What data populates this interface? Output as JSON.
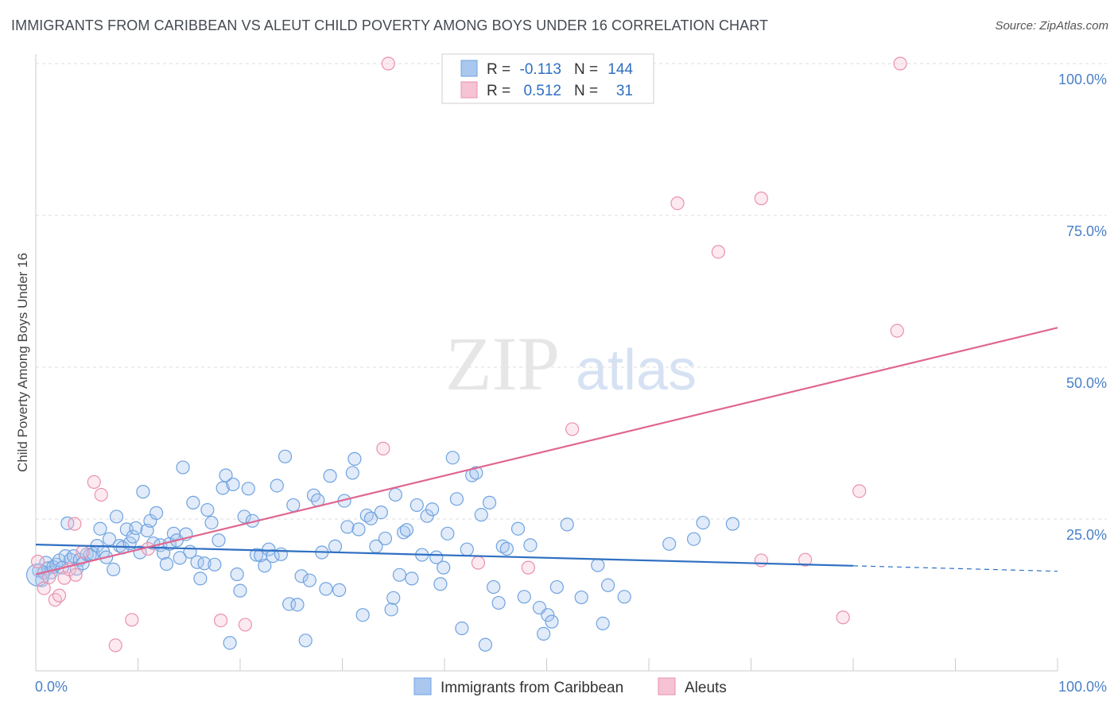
{
  "title": "IMMIGRANTS FROM CARIBBEAN VS ALEUT CHILD POVERTY AMONG BOYS UNDER 16 CORRELATION CHART",
  "source": "Source: ZipAtlas.com",
  "watermark": {
    "zip": "ZIP",
    "atlas": "atlas"
  },
  "colors": {
    "blue": "#6fa3e0",
    "blue_fill": "#a9c7ef",
    "blue_line": "#2f6fc2",
    "pink": "#e991ad",
    "pink_fill": "#f5c3d3",
    "pink_line": "#e06690",
    "tick_text": "#4a80c8",
    "grid": "#dcdcdc"
  },
  "legend": {
    "rows": [
      {
        "r_label": "R =",
        "r_value": "-0.113",
        "n_label": "N =",
        "n_value": "144",
        "color": "blue"
      },
      {
        "r_label": "R =",
        "r_value": "0.512",
        "n_label": "N =",
        "n_value": "31",
        "color": "pink"
      }
    ]
  },
  "chart_data": {
    "type": "scatter",
    "title": "IMMIGRANTS FROM CARIBBEAN VS ALEUT CHILD POVERTY AMONG BOYS UNDER 16 CORRELATION CHART",
    "xlabel": "",
    "ylabel": "Child Poverty Among Boys Under 16",
    "xlim": [
      0,
      100
    ],
    "ylim": [
      0,
      100
    ],
    "x_tick_labels": [
      "0.0%",
      "100.0%"
    ],
    "y_tick_labels": [
      "25.0%",
      "50.0%",
      "75.0%",
      "100.0%"
    ],
    "y_ticks": [
      25,
      50,
      75,
      100
    ],
    "grid": true,
    "legend_position": "bottom-center",
    "series": [
      {
        "name": "Immigrants from Caribbean",
        "color": "blue",
        "trend": {
          "x0": 0,
          "y0": 20.8,
          "x1": 80,
          "y1": 17.3,
          "dashed_to": 100,
          "dashed_y": 16.4
        },
        "points": [
          [
            0.3,
            16.5
          ],
          [
            0.6,
            14.9
          ],
          [
            0.8,
            16.2
          ],
          [
            1.0,
            17.8
          ],
          [
            1.2,
            16.9
          ],
          [
            1.5,
            16.2
          ],
          [
            1.7,
            17.1
          ],
          [
            2.0,
            17.5
          ],
          [
            2.3,
            18.2
          ],
          [
            2.6,
            17.0
          ],
          [
            2.9,
            18.9
          ],
          [
            3.1,
            24.3
          ],
          [
            3.4,
            18.3
          ],
          [
            3.7,
            18.9
          ],
          [
            4.0,
            16.8
          ],
          [
            4.3,
            18.3
          ],
          [
            4.6,
            17.7
          ],
          [
            5.0,
            19.2
          ],
          [
            5.3,
            19.1
          ],
          [
            5.6,
            19.3
          ],
          [
            6.0,
            20.6
          ],
          [
            6.3,
            23.4
          ],
          [
            6.6,
            19.6
          ],
          [
            6.9,
            18.7
          ],
          [
            7.2,
            21.7
          ],
          [
            7.6,
            16.7
          ],
          [
            7.9,
            25.4
          ],
          [
            8.2,
            20.6
          ],
          [
            8.5,
            20.3
          ],
          [
            8.9,
            23.3
          ],
          [
            9.2,
            21.0
          ],
          [
            9.5,
            22.1
          ],
          [
            9.8,
            23.5
          ],
          [
            10.2,
            19.5
          ],
          [
            10.5,
            29.5
          ],
          [
            10.9,
            23.1
          ],
          [
            11.2,
            24.7
          ],
          [
            11.5,
            21.0
          ],
          [
            11.8,
            26.0
          ],
          [
            12.2,
            20.7
          ],
          [
            12.5,
            19.4
          ],
          [
            12.8,
            17.6
          ],
          [
            13.1,
            20.9
          ],
          [
            13.5,
            22.6
          ],
          [
            13.8,
            21.5
          ],
          [
            14.1,
            18.6
          ],
          [
            14.4,
            33.5
          ],
          [
            14.7,
            22.5
          ],
          [
            15.1,
            19.6
          ],
          [
            15.4,
            27.7
          ],
          [
            15.8,
            17.9
          ],
          [
            16.1,
            15.2
          ],
          [
            16.5,
            17.7
          ],
          [
            16.8,
            26.5
          ],
          [
            17.2,
            24.4
          ],
          [
            17.5,
            17.5
          ],
          [
            17.9,
            21.5
          ],
          [
            18.3,
            30.1
          ],
          [
            18.6,
            32.2
          ],
          [
            19.0,
            4.6
          ],
          [
            19.3,
            30.7
          ],
          [
            19.7,
            15.9
          ],
          [
            20.0,
            13.2
          ],
          [
            20.4,
            25.4
          ],
          [
            20.8,
            30.0
          ],
          [
            21.2,
            24.7
          ],
          [
            21.6,
            19.1
          ],
          [
            22.0,
            19.0
          ],
          [
            22.4,
            17.3
          ],
          [
            22.8,
            20.0
          ],
          [
            23.2,
            18.9
          ],
          [
            23.6,
            30.5
          ],
          [
            24.0,
            19.2
          ],
          [
            24.4,
            35.3
          ],
          [
            24.8,
            11.0
          ],
          [
            25.2,
            27.3
          ],
          [
            25.6,
            10.9
          ],
          [
            26.0,
            15.6
          ],
          [
            26.4,
            5.0
          ],
          [
            26.8,
            14.9
          ],
          [
            27.2,
            28.9
          ],
          [
            27.6,
            28.1
          ],
          [
            28.0,
            19.5
          ],
          [
            28.4,
            13.5
          ],
          [
            28.8,
            32.1
          ],
          [
            29.3,
            20.5
          ],
          [
            29.7,
            13.3
          ],
          [
            30.2,
            28.0
          ],
          [
            30.5,
            23.7
          ],
          [
            31.0,
            32.6
          ],
          [
            31.2,
            34.9
          ],
          [
            31.6,
            23.3
          ],
          [
            32.0,
            9.2
          ],
          [
            32.4,
            25.6
          ],
          [
            32.8,
            25.1
          ],
          [
            33.3,
            20.5
          ],
          [
            33.8,
            26.1
          ],
          [
            34.2,
            21.8
          ],
          [
            34.8,
            10.1
          ],
          [
            35.2,
            29.0
          ],
          [
            35.6,
            15.8
          ],
          [
            36.0,
            22.8
          ],
          [
            36.3,
            23.2
          ],
          [
            36.8,
            15.2
          ],
          [
            37.3,
            27.3
          ],
          [
            37.8,
            19.1
          ],
          [
            38.3,
            25.5
          ],
          [
            38.8,
            26.6
          ],
          [
            39.2,
            18.7
          ],
          [
            39.6,
            14.3
          ],
          [
            39.9,
            17.0
          ],
          [
            40.3,
            22.6
          ],
          [
            40.8,
            35.1
          ],
          [
            41.2,
            28.3
          ],
          [
            41.7,
            7.0
          ],
          [
            42.2,
            20.0
          ],
          [
            42.7,
            32.2
          ],
          [
            43.1,
            32.6
          ],
          [
            43.6,
            25.7
          ],
          [
            44.0,
            4.3
          ],
          [
            44.4,
            27.7
          ],
          [
            44.8,
            13.8
          ],
          [
            45.3,
            11.2
          ],
          [
            45.7,
            20.5
          ],
          [
            46.1,
            20.1
          ],
          [
            47.2,
            23.4
          ],
          [
            47.8,
            12.2
          ],
          [
            48.4,
            20.7
          ],
          [
            49.3,
            10.4
          ],
          [
            49.7,
            6.1
          ],
          [
            50.1,
            9.2
          ],
          [
            50.5,
            8.1
          ],
          [
            51.0,
            13.8
          ],
          [
            52.0,
            24.1
          ],
          [
            53.4,
            12.1
          ],
          [
            55.0,
            17.4
          ],
          [
            55.5,
            7.8
          ],
          [
            56.0,
            14.1
          ],
          [
            57.6,
            12.2
          ],
          [
            62.0,
            20.9
          ],
          [
            64.4,
            21.7
          ],
          [
            65.3,
            24.4
          ],
          [
            68.2,
            24.2
          ],
          [
            35.0,
            12.0
          ]
        ]
      },
      {
        "name": "Aleuts",
        "color": "pink",
        "trend": {
          "x0": 0,
          "y0": 15.9,
          "x1": 100,
          "y1": 56.5
        },
        "points": [
          [
            0.2,
            18.0
          ],
          [
            0.8,
            13.6
          ],
          [
            1.3,
            15.4
          ],
          [
            1.9,
            11.7
          ],
          [
            2.3,
            12.4
          ],
          [
            2.8,
            15.3
          ],
          [
            3.3,
            16.7
          ],
          [
            3.9,
            15.8
          ],
          [
            3.8,
            24.2
          ],
          [
            4.6,
            19.6
          ],
          [
            5.7,
            31.1
          ],
          [
            6.4,
            29.0
          ],
          [
            7.8,
            4.2
          ],
          [
            9.4,
            8.4
          ],
          [
            11.0,
            20.1
          ],
          [
            18.1,
            8.3
          ],
          [
            20.5,
            7.6
          ],
          [
            34.5,
            100.0
          ],
          [
            34.0,
            36.6
          ],
          [
            43.3,
            17.8
          ],
          [
            48.2,
            17.0
          ],
          [
            52.5,
            39.8
          ],
          [
            62.8,
            77.0
          ],
          [
            66.8,
            69.0
          ],
          [
            71.0,
            77.8
          ],
          [
            71.0,
            18.2
          ],
          [
            75.3,
            18.3
          ],
          [
            79.0,
            8.8
          ],
          [
            80.6,
            29.6
          ],
          [
            84.3,
            56.0
          ],
          [
            84.6,
            100.0
          ]
        ]
      }
    ]
  }
}
